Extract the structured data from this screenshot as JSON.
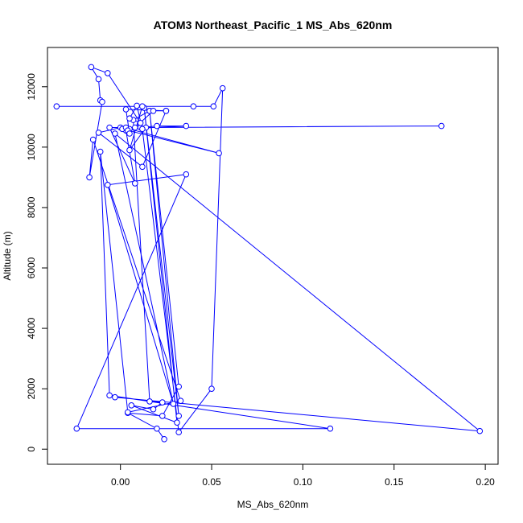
{
  "chart_data": {
    "type": "line",
    "title": "ATOM3 Northeast_Pacific_1 MS_Abs_620nm",
    "xlabel": "MS_Abs_620nm",
    "ylabel": "Altitude (m)",
    "xlim": [
      -0.04,
      0.207
    ],
    "ylim": [
      -500,
      13300
    ],
    "x_ticks": [
      0.0,
      0.05,
      0.1,
      0.15,
      0.2
    ],
    "x_tick_labels": [
      "0.00",
      "0.05",
      "0.10",
      "0.15",
      "0.20"
    ],
    "y_ticks": [
      0,
      2000,
      4000,
      6000,
      8000,
      10000,
      12000
    ],
    "y_tick_labels": [
      "0",
      "2000",
      "4000",
      "6000",
      "8000",
      "10000",
      "12000"
    ],
    "grid": false,
    "legend": "none",
    "series": [
      {
        "color": "#0000ff",
        "marker": "open-circle",
        "points": [
          [
            0.024,
            330
          ],
          [
            0.02,
            680
          ],
          [
            0.004,
            1200
          ],
          [
            0.023,
            1100
          ],
          [
            0.032,
            2070
          ],
          [
            0.016,
            11200
          ],
          [
            0.032,
            1100
          ],
          [
            0.013,
            11300
          ],
          [
            0.031,
            880
          ],
          [
            0.006,
            1450
          ],
          [
            0.018,
            1320
          ],
          [
            0.023,
            1550
          ],
          [
            0.016,
            1580
          ],
          [
            0.007,
            10900
          ],
          [
            0.016,
            11200
          ],
          [
            0.025,
            11200
          ],
          [
            0.012,
            9350
          ],
          [
            -0.012,
            10480
          ],
          [
            0.0,
            10650
          ],
          [
            0.003,
            10550
          ],
          [
            0.008,
            8800
          ],
          [
            -0.006,
            10650
          ],
          [
            0.011,
            10650
          ],
          [
            0.02,
            10700
          ],
          [
            0.036,
            10700
          ],
          [
            0.001,
            10600
          ],
          [
            0.054,
            9800
          ],
          [
            0.005,
            10600
          ],
          [
            0.003,
            10650
          ],
          [
            0.004,
            10550
          ],
          [
            0.005,
            10450
          ],
          [
            0.003,
            11250
          ],
          [
            0.025,
            11200
          ],
          [
            0.018,
            11200
          ],
          [
            0.008,
            10650
          ],
          [
            0.176,
            10700
          ],
          [
            0.014,
            10650
          ],
          [
            0.005,
            9900
          ],
          [
            0.012,
            11350
          ],
          [
            0.04,
            11350
          ],
          [
            -0.035,
            11350
          ],
          [
            0.051,
            11350
          ],
          [
            0.056,
            11950
          ],
          [
            0.05,
            2000
          ],
          [
            0.032,
            560
          ],
          [
            0.012,
            10600
          ],
          [
            0.009,
            11370
          ],
          [
            0.005,
            10950
          ],
          [
            0.011,
            10800
          ],
          [
            -0.007,
            12450
          ],
          [
            -0.016,
            12650
          ],
          [
            -0.012,
            12250
          ],
          [
            -0.011,
            11550
          ],
          [
            -0.01,
            11500
          ],
          [
            -0.017,
            9000
          ],
          [
            -0.015,
            10250
          ],
          [
            0.033,
            1600
          ],
          [
            0.004,
            1220
          ],
          [
            -0.011,
            9850
          ],
          [
            -0.006,
            1780
          ],
          [
            0.115,
            680
          ],
          [
            -0.024,
            680
          ],
          [
            0.036,
            9100
          ],
          [
            -0.007,
            8750
          ],
          [
            0.029,
            1500
          ],
          [
            -0.003,
            10450
          ],
          [
            0.197,
            600
          ],
          [
            -0.003,
            1720
          ]
        ]
      }
    ]
  }
}
